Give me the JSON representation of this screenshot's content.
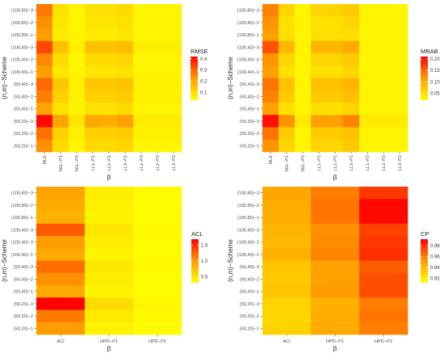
{
  "chart_data": [
    {
      "type": "heatmap",
      "id": "rmse",
      "xlabel": "β",
      "ylabel": "(n,m)−Scheme",
      "legend_title": "RMSE",
      "legend_ticks": [
        "0.1",
        "0.2",
        "0.3",
        "0.4"
      ],
      "legend_tick_values": [
        0.1,
        0.2,
        0.3,
        0.4
      ],
      "legend_range": [
        0.03,
        0.42
      ],
      "legend_placement": "right",
      "grid": true,
      "x_categories": [
        "MLE",
        "SEL−P1",
        "SEL−P2",
        "LL1−P1",
        "LL2−P1",
        "LL3−P1",
        "LL1−P2",
        "LL2−P2",
        "LL3−P2"
      ],
      "y_categories": [
        "(100,80)−3",
        "(100,80)−2",
        "(100,80)−1",
        "(100,40)−3",
        "(100,40)−2",
        "(100,40)−1",
        "(50,40)−3",
        "(50,40)−2",
        "(50,40)−1",
        "(50,20)−3",
        "(50,20)−2",
        "(50,20)−1"
      ],
      "values": [
        [
          0.27,
          0.09,
          0.05,
          0.09,
          0.09,
          0.1,
          0.05,
          0.05,
          0.05
        ],
        [
          0.24,
          0.08,
          0.05,
          0.08,
          0.08,
          0.09,
          0.05,
          0.05,
          0.05
        ],
        [
          0.22,
          0.07,
          0.05,
          0.07,
          0.07,
          0.08,
          0.05,
          0.05,
          0.05
        ],
        [
          0.33,
          0.15,
          0.06,
          0.15,
          0.15,
          0.16,
          0.06,
          0.06,
          0.06
        ],
        [
          0.25,
          0.1,
          0.05,
          0.1,
          0.1,
          0.11,
          0.05,
          0.05,
          0.05
        ],
        [
          0.22,
          0.08,
          0.05,
          0.08,
          0.08,
          0.09,
          0.05,
          0.05,
          0.05
        ],
        [
          0.29,
          0.14,
          0.06,
          0.14,
          0.14,
          0.15,
          0.06,
          0.06,
          0.06
        ],
        [
          0.26,
          0.12,
          0.06,
          0.12,
          0.12,
          0.13,
          0.06,
          0.06,
          0.06
        ],
        [
          0.21,
          0.09,
          0.05,
          0.09,
          0.09,
          0.1,
          0.05,
          0.05,
          0.05
        ],
        [
          0.41,
          0.21,
          0.08,
          0.2,
          0.19,
          0.22,
          0.07,
          0.07,
          0.07
        ],
        [
          0.28,
          0.12,
          0.06,
          0.12,
          0.12,
          0.13,
          0.06,
          0.06,
          0.06
        ],
        [
          0.24,
          0.1,
          0.05,
          0.1,
          0.1,
          0.11,
          0.05,
          0.05,
          0.05
        ]
      ]
    },
    {
      "type": "heatmap",
      "id": "mrab",
      "xlabel": "β",
      "ylabel": "(n,m)−Scheme",
      "legend_title": "MRAB",
      "legend_ticks": [
        "0.05",
        "0.10",
        "0.15",
        "0.20"
      ],
      "legend_tick_values": [
        0.05,
        0.1,
        0.15,
        0.2
      ],
      "legend_range": [
        0.02,
        0.21
      ],
      "legend_placement": "right",
      "grid": true,
      "x_categories": [
        "MLE",
        "SEL−P1",
        "SEL−P2",
        "LL1−P1",
        "LL2−P1",
        "LL3−P1",
        "LL1−P2",
        "LL2−P2",
        "LL3−P2"
      ],
      "y_categories": [
        "(100,80)−3",
        "(100,80)−2",
        "(100,80)−1",
        "(100,40)−3",
        "(100,40)−2",
        "(100,40)−1",
        "(50,40)−3",
        "(50,40)−2",
        "(50,40)−1",
        "(50,20)−3",
        "(50,20)−2",
        "(50,20)−1"
      ],
      "values": [
        [
          0.13,
          0.06,
          0.03,
          0.06,
          0.06,
          0.07,
          0.03,
          0.03,
          0.03
        ],
        [
          0.12,
          0.05,
          0.03,
          0.05,
          0.05,
          0.06,
          0.03,
          0.03,
          0.03
        ],
        [
          0.11,
          0.05,
          0.03,
          0.05,
          0.05,
          0.05,
          0.03,
          0.03,
          0.03
        ],
        [
          0.16,
          0.09,
          0.03,
          0.09,
          0.09,
          0.1,
          0.03,
          0.03,
          0.03
        ],
        [
          0.12,
          0.06,
          0.03,
          0.06,
          0.06,
          0.07,
          0.03,
          0.03,
          0.03
        ],
        [
          0.11,
          0.05,
          0.03,
          0.05,
          0.05,
          0.06,
          0.03,
          0.03,
          0.03
        ],
        [
          0.14,
          0.08,
          0.03,
          0.08,
          0.08,
          0.09,
          0.03,
          0.03,
          0.03
        ],
        [
          0.13,
          0.07,
          0.03,
          0.07,
          0.07,
          0.08,
          0.03,
          0.03,
          0.03
        ],
        [
          0.11,
          0.05,
          0.03,
          0.05,
          0.05,
          0.06,
          0.03,
          0.03,
          0.03
        ],
        [
          0.2,
          0.12,
          0.04,
          0.11,
          0.11,
          0.13,
          0.04,
          0.04,
          0.04
        ],
        [
          0.14,
          0.07,
          0.03,
          0.07,
          0.07,
          0.08,
          0.03,
          0.03,
          0.03
        ],
        [
          0.12,
          0.06,
          0.03,
          0.06,
          0.06,
          0.07,
          0.03,
          0.03,
          0.03
        ]
      ]
    },
    {
      "type": "heatmap",
      "id": "acl",
      "xlabel": "β",
      "ylabel": "(n,m)−Scheme",
      "legend_title": "ACL",
      "legend_ticks": [
        "0.5",
        "1.0",
        "1.5"
      ],
      "legend_tick_values": [
        0.5,
        1.0,
        1.5
      ],
      "legend_range": [
        0.3,
        1.7
      ],
      "legend_placement": "right",
      "grid": true,
      "x_categories": [
        "ACI",
        "HPD−P1",
        "HPD−P2"
      ],
      "y_categories": [
        "(100,80)−3",
        "(100,80)−2",
        "(100,80)−1",
        "(100,40)−3",
        "(100,40)−2",
        "(100,40)−1",
        "(50,40)−3",
        "(50,40)−2",
        "(50,40)−1",
        "(50,20)−3",
        "(50,20)−2",
        "(50,20)−1"
      ],
      "values": [
        [
          0.95,
          0.42,
          0.33
        ],
        [
          0.9,
          0.4,
          0.33
        ],
        [
          0.85,
          0.38,
          0.32
        ],
        [
          1.3,
          0.48,
          0.34
        ],
        [
          1.0,
          0.42,
          0.33
        ],
        [
          0.9,
          0.38,
          0.32
        ],
        [
          1.2,
          0.46,
          0.34
        ],
        [
          1.05,
          0.43,
          0.33
        ],
        [
          0.9,
          0.38,
          0.32
        ],
        [
          1.7,
          0.55,
          0.36
        ],
        [
          1.15,
          0.45,
          0.34
        ],
        [
          1.0,
          0.4,
          0.33
        ]
      ]
    },
    {
      "type": "heatmap",
      "id": "cp",
      "xlabel": "β",
      "ylabel": "(n,m)−Scheme",
      "legend_title": "CP",
      "legend_ticks": [
        "0.92",
        "0.94",
        "0.96",
        "0.98"
      ],
      "legend_tick_values": [
        0.92,
        0.94,
        0.96,
        0.98
      ],
      "legend_range": [
        0.912,
        0.992
      ],
      "legend_placement": "right",
      "grid": true,
      "x_categories": [
        "ACI",
        "HPD−P1",
        "HPD−P2"
      ],
      "y_categories": [
        "(100,80)−3",
        "(100,80)−2",
        "(100,80)−1",
        "(100,40)−3",
        "(100,40)−2",
        "(100,40)−1",
        "(50,40)−3",
        "(50,40)−2",
        "(50,40)−1",
        "(50,20)−3",
        "(50,20)−2",
        "(50,20)−1"
      ],
      "values": [
        [
          0.948,
          0.96,
          0.978
        ],
        [
          0.946,
          0.962,
          0.99
        ],
        [
          0.945,
          0.962,
          0.99
        ],
        [
          0.942,
          0.955,
          0.975
        ],
        [
          0.94,
          0.956,
          0.978
        ],
        [
          0.943,
          0.958,
          0.98
        ],
        [
          0.935,
          0.95,
          0.968
        ],
        [
          0.934,
          0.95,
          0.972
        ],
        [
          0.936,
          0.952,
          0.972
        ],
        [
          0.93,
          0.944,
          0.96
        ],
        [
          0.928,
          0.945,
          0.962
        ],
        [
          0.93,
          0.946,
          0.96
        ]
      ]
    }
  ]
}
